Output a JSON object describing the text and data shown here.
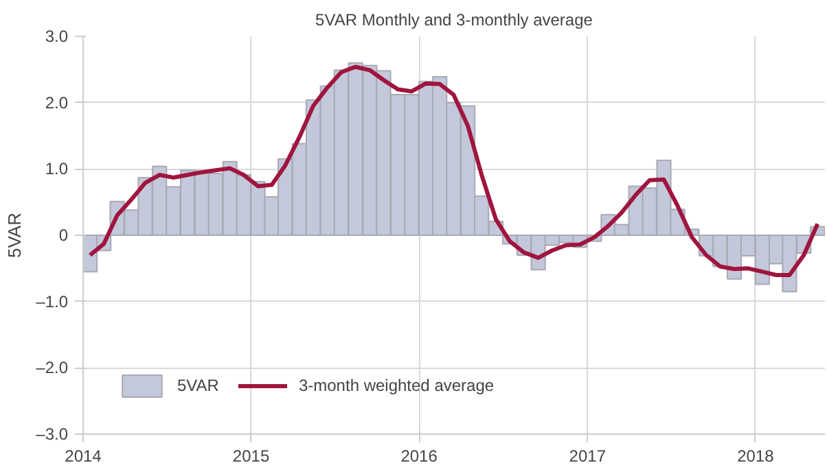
{
  "chart_data": {
    "type": "bar",
    "title": "5VAR Monthly and 3-monthly average",
    "ylabel": "5VAR",
    "x": [
      "2014-01-16",
      "2014-02-15",
      "2014-03-16",
      "2014-04-16",
      "2014-05-16",
      "2014-06-16",
      "2014-07-16",
      "2014-08-16",
      "2014-09-16",
      "2014-10-16",
      "2014-11-16",
      "2014-12-16",
      "2015-01-16",
      "2015-02-15",
      "2015-03-16",
      "2015-04-16",
      "2015-05-16",
      "2015-06-16",
      "2015-07-16",
      "2015-08-16",
      "2015-09-16",
      "2015-10-16",
      "2015-11-16",
      "2015-12-16",
      "2016-01-16",
      "2016-02-15",
      "2016-03-16",
      "2016-04-16",
      "2016-05-16",
      "2016-06-16",
      "2016-07-16",
      "2016-08-16",
      "2016-09-16",
      "2016-10-16",
      "2016-11-16",
      "2016-12-16",
      "2017-01-16",
      "2017-02-15",
      "2017-03-16",
      "2017-04-16",
      "2017-05-16",
      "2017-06-16",
      "2017-07-16",
      "2017-08-16",
      "2017-09-16",
      "2017-10-16",
      "2017-11-16",
      "2017-12-16",
      "2018-01-16",
      "2018-02-15",
      "2018-03-16",
      "2018-04-16",
      "2018-05-16"
    ],
    "series": [
      {
        "name": "5VAR",
        "color": "#c3c8da",
        "values": [
          -0.55,
          -0.23,
          0.51,
          0.38,
          0.87,
          1.04,
          0.73,
          0.98,
          0.97,
          0.93,
          1.11,
          0.91,
          0.81,
          0.58,
          1.15,
          1.38,
          2.04,
          2.25,
          2.49,
          2.6,
          2.56,
          2.48,
          2.12,
          2.12,
          2.32,
          2.39,
          2.0,
          1.95,
          0.59,
          0.21,
          -0.13,
          -0.3,
          -0.52,
          -0.15,
          -0.11,
          -0.18,
          -0.09,
          0.31,
          0.16,
          0.74,
          0.71,
          1.13,
          0.39,
          0.09,
          -0.31,
          -0.47,
          -0.66,
          -0.31,
          -0.74,
          -0.43,
          -0.85,
          -0.27,
          0.13
        ]
      },
      {
        "name": "3-month weighted average",
        "type": "line",
        "color": "#a0153e",
        "values": [
          -0.3,
          -0.13,
          0.3,
          0.54,
          0.79,
          0.91,
          0.87,
          0.91,
          0.95,
          0.98,
          1.01,
          0.91,
          0.74,
          0.76,
          1.05,
          1.48,
          1.95,
          2.23,
          2.46,
          2.54,
          2.49,
          2.34,
          2.2,
          2.17,
          2.29,
          2.28,
          2.12,
          1.65,
          0.91,
          0.24,
          -0.09,
          -0.26,
          -0.34,
          -0.23,
          -0.15,
          -0.14,
          -0.03,
          0.14,
          0.34,
          0.61,
          0.83,
          0.84,
          0.44,
          -0.03,
          -0.3,
          -0.47,
          -0.51,
          -0.5,
          -0.55,
          -0.6,
          -0.6,
          -0.3,
          0.17
        ]
      }
    ],
    "xlim": [
      "2014-01-01",
      "2018-06-01"
    ],
    "xticks": [
      "2014",
      "2015",
      "2016",
      "2017",
      "2018"
    ],
    "ylim": [
      -3.0,
      3.0
    ],
    "yticks": [
      {
        "value": -3,
        "label": "–3.0"
      },
      {
        "value": -2,
        "label": "–2.0"
      },
      {
        "value": -1,
        "label": "–1.0"
      },
      0,
      {
        "value": 1,
        "label": "1.0"
      },
      {
        "value": 2,
        "label": "2.0"
      },
      {
        "value": 3,
        "label": "3.0"
      }
    ],
    "grid": true,
    "legend": "bottom left"
  }
}
